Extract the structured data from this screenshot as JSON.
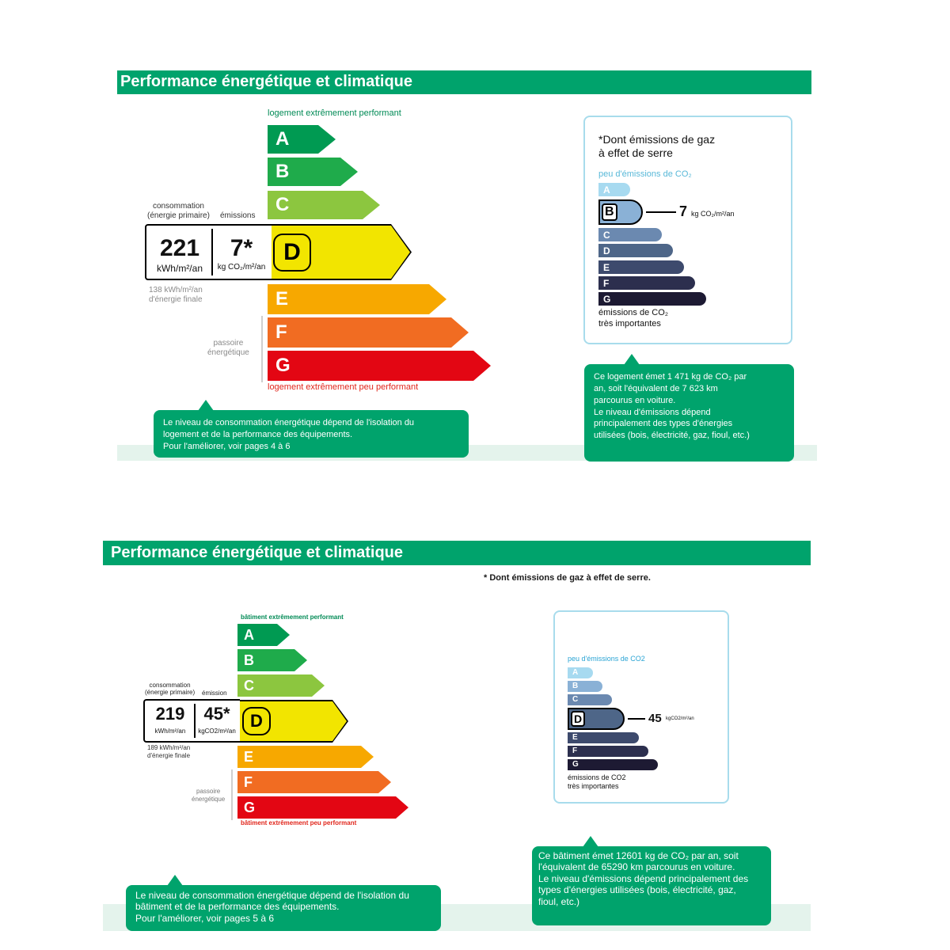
{
  "panel1": {
    "title": "Performance énergétique et climatique",
    "top_caption": "logement extrêmement performant",
    "bottom_caption": "logement extrêmement peu performant",
    "consumption_label_line1": "consommation",
    "consumption_label_line2": "(énergie primaire)",
    "emission_label": "émissions",
    "consumption_value": "221",
    "consumption_unit": "kWh/m²/an",
    "emission_value": "7*",
    "emission_unit": "kg CO₂/m²/an",
    "final_energy_line1": "138 kWh/m²/an",
    "final_energy_line2": "d'énergie finale",
    "passoire_line1": "passoire",
    "passoire_line2": "énergétique",
    "classes": [
      "A",
      "B",
      "C",
      "D",
      "E",
      "F",
      "G"
    ],
    "selected_class": "D",
    "co2": {
      "note_line1": "*Dont émissions de gaz",
      "note_line2": "à effet de serre",
      "low_label": "peu d'émissions de CO₂",
      "classes": [
        "A",
        "B",
        "C",
        "D",
        "E",
        "F",
        "G"
      ],
      "selected_class": "B",
      "value": "7",
      "unit": "kg CO₂/m²/an",
      "high_label_line1": "émissions de CO₂",
      "high_label_line2": "très importantes"
    },
    "bubble_left": [
      "Le niveau de consommation énergétique dépend de l'isolation du",
      "logement et de la performance des équipements.",
      "Pour l'améliorer, voir pages 4 à 6"
    ],
    "bubble_right": [
      "Ce logement émet 1 471 kg de CO₂ par",
      "an, soit l'équivalent de 7 623 km",
      "parcourus en voiture.",
      "Le niveau d'émissions dépend",
      "principalement des types d'énergies",
      "utilisées (bois, électricité, gaz, fioul, etc.)"
    ]
  },
  "panel2": {
    "title": "Performance énergétique et climatique",
    "note": "* Dont émissions de gaz à effet de serre.",
    "top_caption": "bâtiment extrêmement performant",
    "bottom_caption": "bâtiment extrêmement peu performant",
    "consumption_label_line1": "consommation",
    "consumption_label_line2": "(énergie primaire)",
    "emission_label": "émission",
    "consumption_value": "219",
    "consumption_unit": "kWh/m²/an",
    "emission_value": "45*",
    "emission_unit": "kgCO2/m²/an",
    "final_energy_line1": "189 kWh/m²/an",
    "final_energy_line2": "d'énergie finale",
    "passoire_line1": "passoire",
    "passoire_line2": "énergétique",
    "classes": [
      "A",
      "B",
      "C",
      "D",
      "E",
      "F",
      "G"
    ],
    "selected_class": "D",
    "co2": {
      "low_label": "peu d'émissions de CO2",
      "classes": [
        "A",
        "B",
        "C",
        "D",
        "E",
        "F",
        "G"
      ],
      "selected_class": "D",
      "value": "45",
      "unit": "kgCO2/m²/an",
      "high_label_line1": "émissions de CO2",
      "high_label_line2": "très importantes"
    },
    "bubble_left": [
      "Le niveau de consommation énergétique dépend de l'isolation du",
      "bâtiment et de la performance des équipements.",
      "Pour l'améliorer, voir pages 5 à 6"
    ],
    "bubble_right": [
      "Ce bâtiment émet 12601  kg de CO₂ par an, soit",
      "l'équivalent de 65290 km parcourus en voiture.",
      "Le niveau d'émissions dépend principalement des",
      "types d'énergies utilisées (bois, électricité, gaz,",
      "fioul, etc.)"
    ]
  },
  "colors": {
    "band_green": "#00a36c",
    "energy": [
      "#009a52",
      "#1fab4b",
      "#8cc63f",
      "#f2e500",
      "#f7a800",
      "#f16c22",
      "#e30613"
    ],
    "co2": [
      "#a7daf0",
      "#8ab1d6",
      "#6b89b0",
      "#4e6688",
      "#3d4a6d",
      "#2c2f4e",
      "#1d1a33"
    ]
  }
}
